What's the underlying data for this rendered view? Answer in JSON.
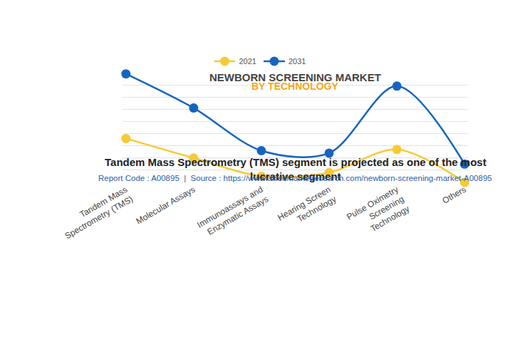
{
  "chart_data": {
    "type": "line",
    "title": "NEWBORN SCREENING MARKET",
    "subtitle": "BY TECHNOLOGY",
    "categories": [
      "Tandem Mass Spectrometry (TMS)",
      "Molecular Assays",
      "Immunoassays and Enzymatic Assays",
      "Hearing Screen Technology",
      "Pulse Oximetry Screening Technology",
      "Others"
    ],
    "series": [
      {
        "name": "2021",
        "color": "#f7c934",
        "values": [
          3.6,
          2.0,
          0.5,
          0.8,
          2.7,
          0.0
        ]
      },
      {
        "name": "2031",
        "color": "#1565c0",
        "values": [
          8.9,
          6.1,
          2.6,
          2.4,
          7.9,
          1.5
        ]
      }
    ],
    "ylim": [
      0,
      9
    ],
    "yticks": [
      0,
      1,
      2,
      3,
      4,
      5,
      6,
      7,
      8,
      9
    ],
    "grid": true,
    "tick_labels": "x",
    "legend": "top",
    "marker": "circle",
    "line_style": "solid",
    "annotations": [
      "Tandem Mass Spectrometry (TMS) segment is projected as one of the most lucrative segment",
      "Report Code : A00895  |  Source : https://www.alliedmarketresearch.com/newborn-screening-market-A00895"
    ]
  }
}
